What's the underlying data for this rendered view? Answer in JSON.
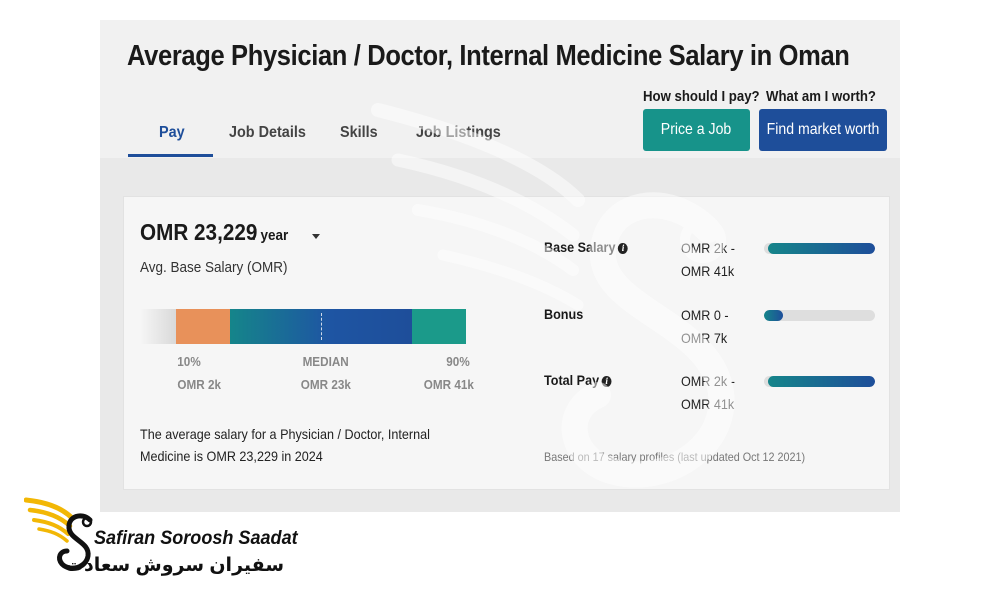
{
  "header": {
    "title": "Average Physician / Doctor, Internal Medicine Salary in Oman",
    "tabs": [
      {
        "label": "Pay"
      },
      {
        "label": "Job Details"
      },
      {
        "label": "Skills"
      },
      {
        "label": "Job Listings"
      }
    ],
    "active_tab": "Pay",
    "price_question": "How should I pay?",
    "price_button": "Price a Job",
    "worth_question": "What am I worth?",
    "worth_button": "Find market worth"
  },
  "summary": {
    "amount": "OMR 23,229",
    "period": "/ year",
    "subtitle": "Avg. Base Salary (OMR)",
    "percentiles": [
      {
        "label": "10%",
        "value": "OMR 2k"
      },
      {
        "label": "MEDIAN",
        "value": "OMR 23k"
      },
      {
        "label": "90%",
        "value": "OMR 41k"
      }
    ],
    "description": "The average salary for a Physician / Doctor, Internal Medicine is OMR 23,229 in 2024"
  },
  "breakdown": [
    {
      "label": "Base Salary",
      "has_info": true,
      "range": "OMR 2k - OMR 41k",
      "fill_start_pct": 4,
      "fill_end_pct": 100
    },
    {
      "label": "Bonus",
      "has_info": false,
      "range": "OMR 0 - OMR 7k",
      "fill_start_pct": 0,
      "fill_end_pct": 17
    },
    {
      "label": "Total Pay",
      "has_info": true,
      "range": "OMR 2k - OMR 41k",
      "fill_start_pct": 4,
      "fill_end_pct": 100
    }
  ],
  "based_on": "Based on 17 salary profiles (last updated Oct 12 2021)",
  "logo": {
    "name_en": "Safiran Soroosh Saadat",
    "name_fa": "سفیران سروش سعادت"
  },
  "colors": {
    "brand_blue": "#1e4e9a",
    "brand_teal": "#17938a",
    "low_percentile": "#e8915a",
    "logo_gold": "#f2b705"
  },
  "icons": [
    "caret-down-icon",
    "info-icon",
    "logo-wing-icon"
  ]
}
